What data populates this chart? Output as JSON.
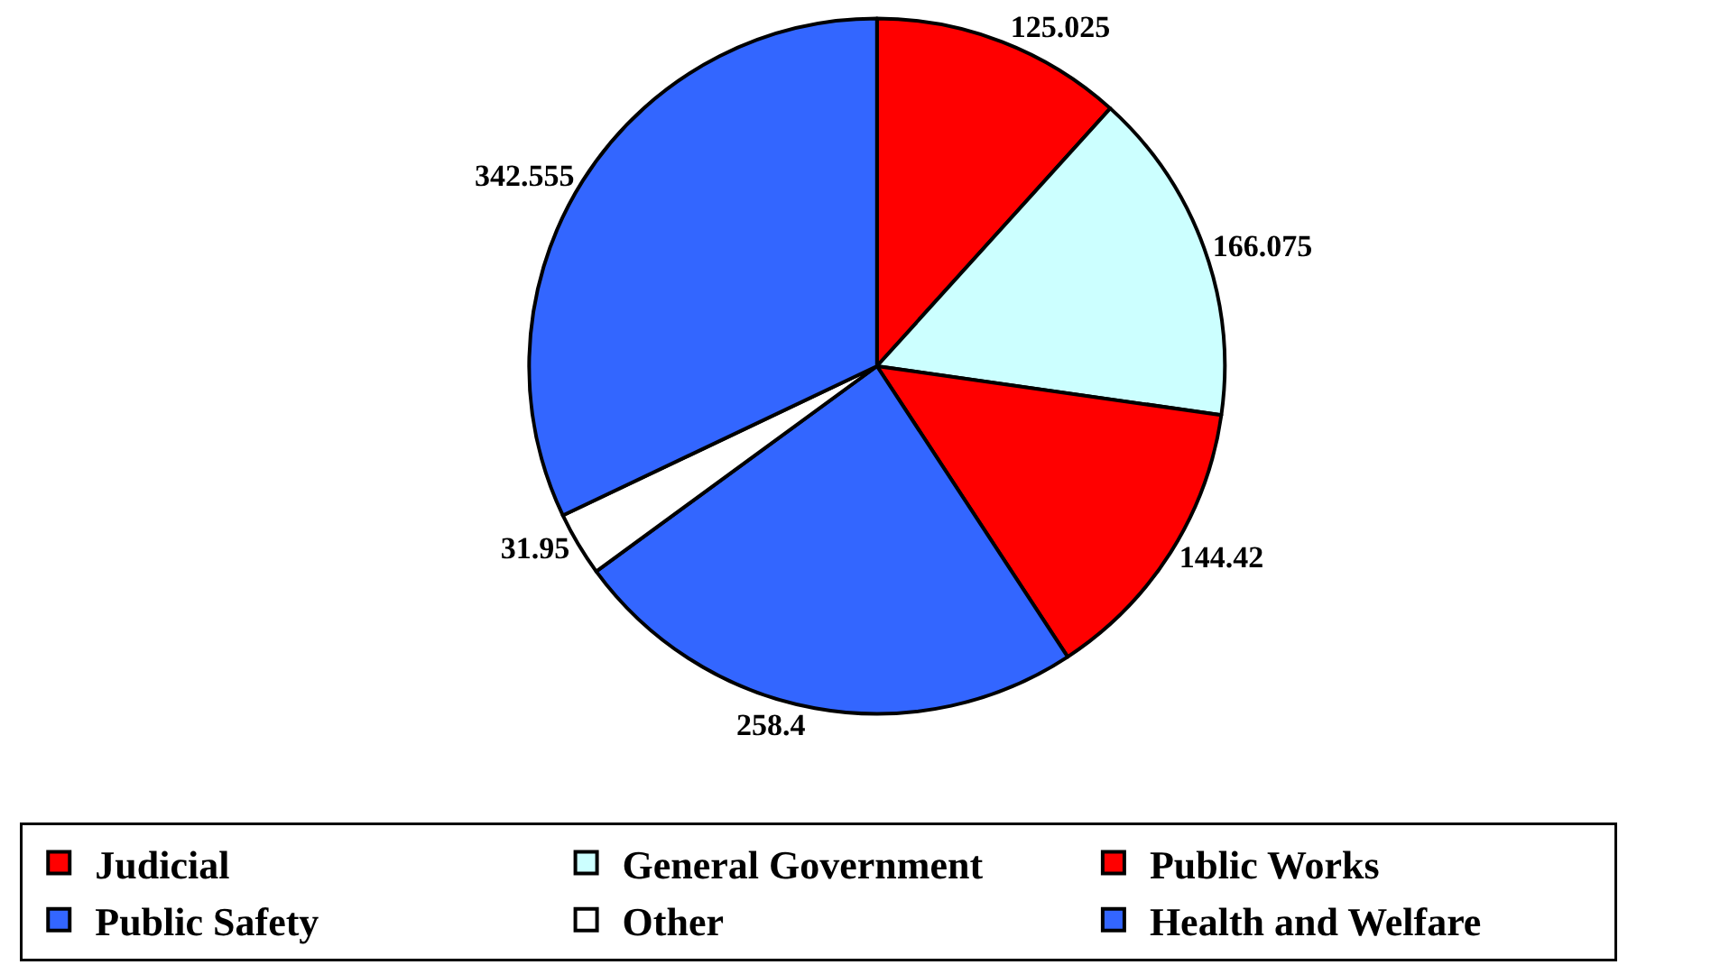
{
  "chart_data": {
    "type": "pie",
    "categories": [
      "Judicial",
      "General Government",
      "Public Works",
      "Public Safety",
      "Other",
      "Health and Welfare"
    ],
    "values": [
      125.025,
      166.075,
      144.42,
      258.4,
      31.95,
      342.555
    ],
    "colors": [
      "#ff0000",
      "#ccffff",
      "#ff0000",
      "#3366ff",
      "#ffffff",
      "#3366ff"
    ],
    "data_labels": true,
    "legend": "bottom"
  }
}
